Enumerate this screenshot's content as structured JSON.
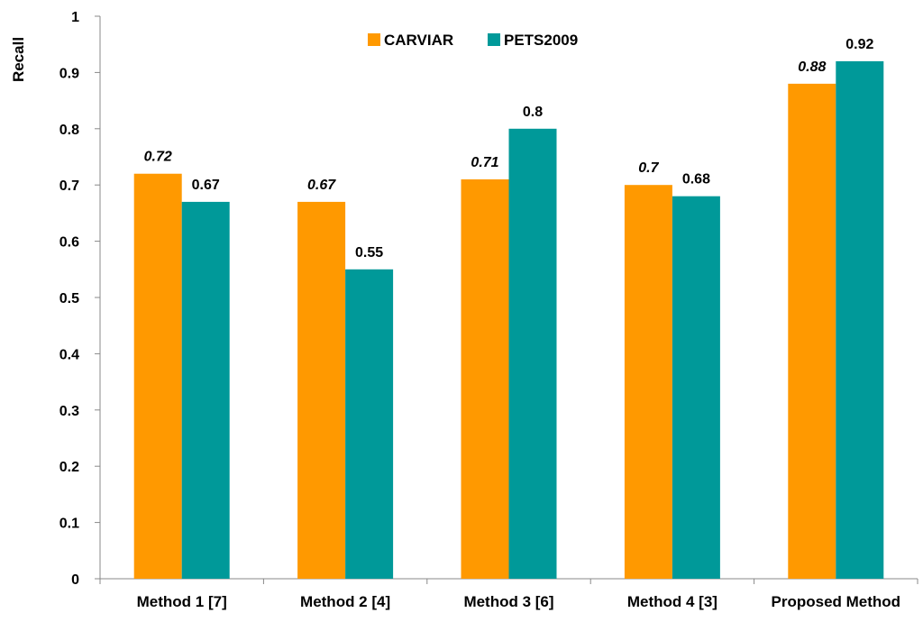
{
  "chart_data": {
    "type": "bar",
    "ylabel": "Recall",
    "xlabel": "",
    "ylim": [
      0,
      1
    ],
    "yticks": [
      "0",
      "0.1",
      "0.2",
      "0.3",
      "0.4",
      "0.5",
      "0.6",
      "0.7",
      "0.8",
      "0.9",
      "1"
    ],
    "categories": [
      "Method 1 [7]",
      "Method 2 [4]",
      "Method 3 [6]",
      "Method 4 [3]",
      "Proposed Method"
    ],
    "series": [
      {
        "name": "CARVIAR",
        "color": "#FF9900",
        "values": [
          0.72,
          0.67,
          0.71,
          0.7,
          0.88
        ],
        "labels": [
          "0.72",
          "0.67",
          "0.71",
          "0.7",
          "0.88"
        ],
        "label_style": "italic"
      },
      {
        "name": "PETS2009",
        "color": "#009999",
        "values": [
          0.67,
          0.55,
          0.8,
          0.68,
          0.92
        ],
        "labels": [
          "0.67",
          "0.55",
          "0.8",
          "0.68",
          "0.92"
        ],
        "label_style": "normal"
      }
    ],
    "legend_position": "top-center",
    "grid": false
  }
}
